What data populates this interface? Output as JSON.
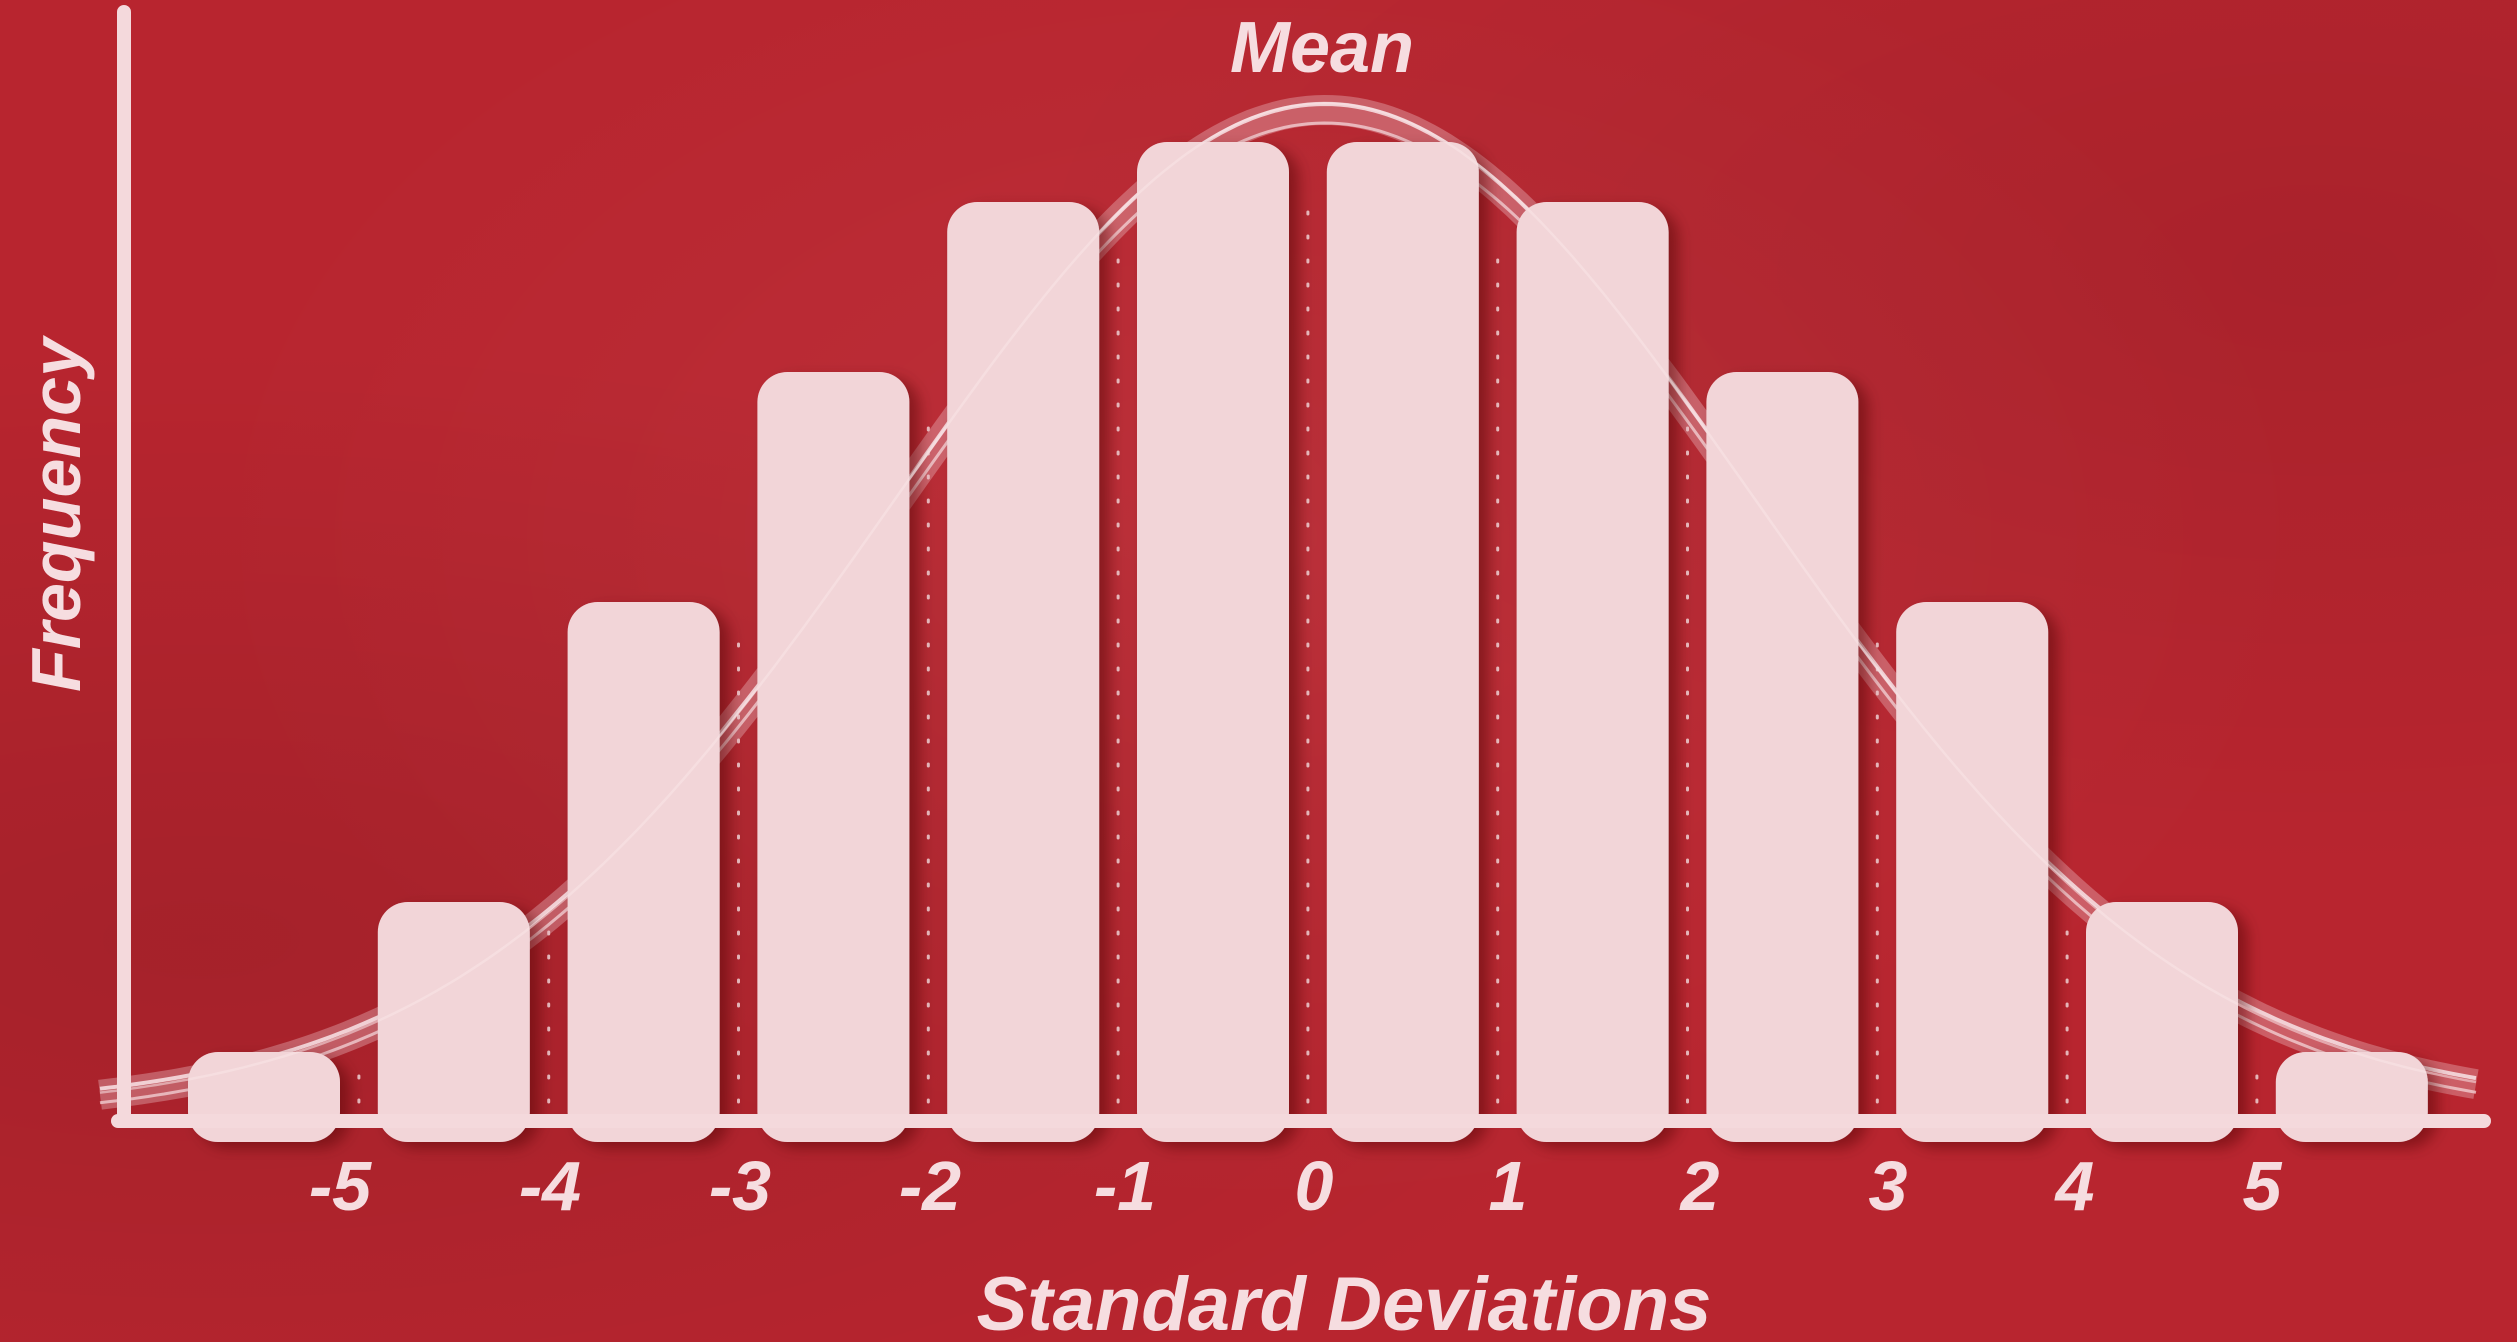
{
  "chart_data": {
    "type": "bar",
    "title": "",
    "annotation": "Mean",
    "xlabel": "Standard Deviations",
    "ylabel": "Frequency",
    "tick_labels": [
      "-5",
      "-4",
      "-3",
      "-2",
      "-1",
      "0",
      "1",
      "2",
      "3",
      "4",
      "5"
    ],
    "bar_values": [
      0.06,
      0.21,
      0.51,
      0.74,
      0.91,
      0.97,
      0.97,
      0.91,
      0.74,
      0.51,
      0.21,
      0.06
    ],
    "ylim": [
      0,
      1
    ],
    "grid": false,
    "legend": "none",
    "curve": "normal",
    "colors": {
      "background": "#b8252f",
      "bar": "#f2d5d8",
      "axis": "#f4d9dc",
      "text": "#f6dde0"
    }
  }
}
